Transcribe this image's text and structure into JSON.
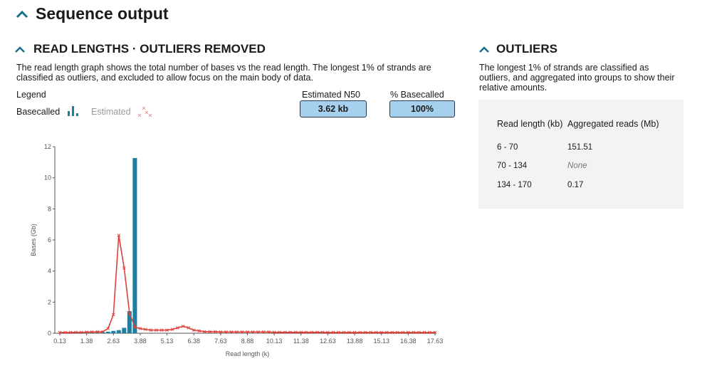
{
  "header": {
    "title": "Sequence output"
  },
  "read_lengths": {
    "title": "READ LENGTHS · OUTLIERS REMOVED",
    "description": "The read length graph shows the total number of bases vs the read length. The longest 1% of strands are classified as outliers, and excluded to allow focus on the main body of data.",
    "legend_label": "Legend",
    "n50": {
      "label": "Estimated N50",
      "value": "3.62 kb"
    },
    "basecalled": {
      "label": "% Basecalled",
      "value": "100%"
    }
  },
  "chart_data": {
    "type": "bar",
    "xlabel": "Read length (k)",
    "ylabel": "Bases (Gb)",
    "xlim": [
      0.13,
      17.63
    ],
    "xticks": [
      0.13,
      1.38,
      2.63,
      3.88,
      5.13,
      6.38,
      7.63,
      8.88,
      10.13,
      11.38,
      12.63,
      13.88,
      15.13,
      16.38,
      17.63
    ],
    "ylim": [
      0,
      12
    ],
    "yticks": [
      0,
      2,
      4,
      6,
      8,
      10,
      12
    ],
    "series": [
      {
        "name": "Basecalled",
        "type": "bar",
        "color": "#1a7fa0",
        "x": [
          0.38,
          0.63,
          0.88,
          1.13,
          1.38,
          1.63,
          1.88,
          2.13,
          2.38,
          2.63,
          2.88,
          3.13,
          3.38,
          3.63
        ],
        "values": [
          0.02,
          0.02,
          0.03,
          0.03,
          0.04,
          0.05,
          0.06,
          0.08,
          0.1,
          0.15,
          0.2,
          0.35,
          1.42,
          11.27
        ]
      },
      {
        "name": "Estimated",
        "type": "line",
        "color": "#e0403a",
        "x": [
          0.13,
          0.38,
          0.63,
          0.88,
          1.13,
          1.38,
          1.63,
          1.88,
          2.13,
          2.38,
          2.63,
          2.88,
          3.13,
          3.38,
          3.63,
          3.88,
          4.13,
          4.38,
          4.63,
          4.88,
          5.13,
          5.38,
          5.63,
          5.88,
          6.13,
          6.38,
          6.63,
          6.88,
          7.13,
          7.38,
          7.63,
          7.88,
          8.13,
          8.38,
          8.63,
          8.88,
          9.13,
          9.38,
          9.63,
          9.88,
          10.13,
          10.38,
          10.63,
          10.88,
          11.13,
          11.38,
          11.63,
          11.88,
          12.13,
          12.38,
          12.63,
          12.88,
          13.13,
          13.38,
          13.63,
          13.88,
          14.13,
          14.38,
          14.63,
          14.88,
          15.13,
          15.38,
          15.63,
          15.88,
          16.13,
          16.38,
          16.63,
          16.88,
          17.13,
          17.38,
          17.63
        ],
        "values": [
          0.05,
          0.05,
          0.05,
          0.06,
          0.06,
          0.07,
          0.08,
          0.09,
          0.1,
          0.3,
          1.2,
          6.3,
          4.2,
          1.3,
          0.4,
          0.3,
          0.25,
          0.2,
          0.2,
          0.2,
          0.2,
          0.25,
          0.35,
          0.45,
          0.35,
          0.2,
          0.15,
          0.1,
          0.1,
          0.1,
          0.08,
          0.08,
          0.08,
          0.08,
          0.08,
          0.08,
          0.08,
          0.08,
          0.08,
          0.08,
          0.06,
          0.06,
          0.06,
          0.06,
          0.06,
          0.06,
          0.06,
          0.06,
          0.06,
          0.06,
          0.05,
          0.05,
          0.05,
          0.05,
          0.05,
          0.05,
          0.05,
          0.05,
          0.05,
          0.05,
          0.05,
          0.05,
          0.05,
          0.05,
          0.05,
          0.05,
          0.05,
          0.05,
          0.05,
          0.05,
          0.05
        ]
      }
    ]
  },
  "outliers": {
    "title": "OUTLIERS",
    "description": "The longest 1% of strands are classified as outliers, and aggregated into groups to show their relative amounts.",
    "table": {
      "headers": [
        "Read length (kb)",
        "Aggregated reads (Mb)"
      ],
      "rows": [
        [
          "6 - 70",
          "151.51"
        ],
        [
          "70 - 134",
          "None"
        ],
        [
          "134 - 170",
          "0.17"
        ]
      ]
    }
  }
}
